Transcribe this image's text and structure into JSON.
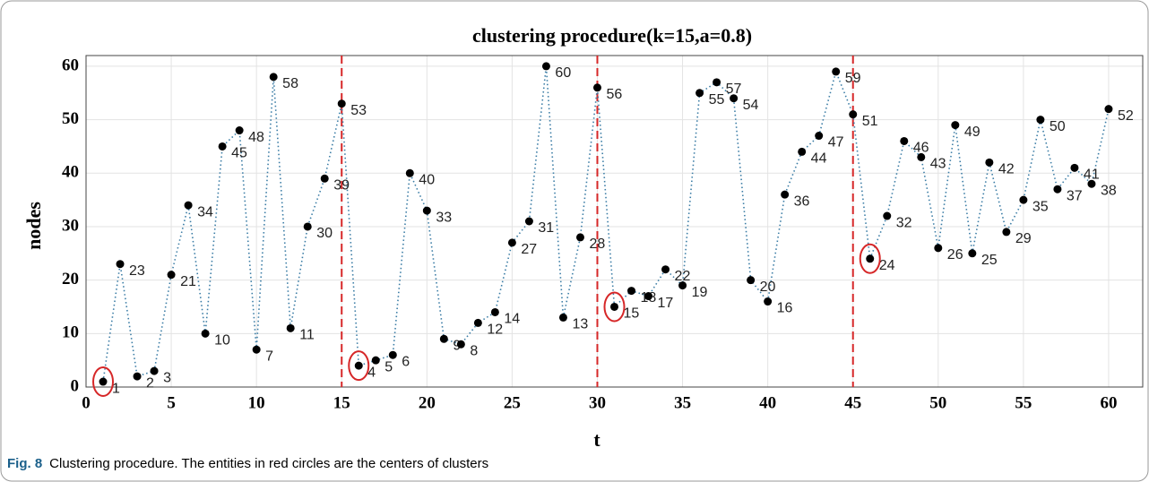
{
  "chart_data": {
    "type": "line",
    "title": "clustering procedure(k=15,a=0.8)",
    "x_label": "t",
    "y_label": "nodes",
    "x": [
      1,
      2,
      3,
      4,
      5,
      6,
      7,
      8,
      9,
      10,
      11,
      12,
      13,
      14,
      15,
      16,
      17,
      18,
      19,
      20,
      21,
      22,
      23,
      24,
      25,
      26,
      27,
      28,
      29,
      30,
      31,
      32,
      33,
      34,
      35,
      36,
      37,
      38,
      39,
      40,
      41,
      42,
      43,
      44,
      45,
      46,
      47,
      48,
      49,
      50,
      51,
      52,
      53,
      54,
      55,
      56,
      57,
      58,
      59,
      60
    ],
    "series": [
      {
        "color": "#3a7ca5",
        "marker_color": "#000000",
        "values": [
          1,
          23,
          2,
          3,
          21,
          34,
          10,
          45,
          48,
          7,
          58,
          11,
          30,
          39,
          53,
          4,
          5,
          6,
          40,
          33,
          9,
          8,
          12,
          14,
          27,
          31,
          60,
          13,
          28,
          56,
          15,
          18,
          17,
          22,
          19,
          55,
          57,
          54,
          20,
          16,
          36,
          44,
          47,
          59,
          51,
          24,
          32,
          46,
          43,
          26,
          49,
          25,
          42,
          29,
          35,
          50,
          37,
          41,
          38,
          52
        ]
      }
    ],
    "cluster_boundaries": [
      15,
      30,
      45
    ],
    "cluster_centers_x": [
      1,
      16,
      31,
      46
    ],
    "boundary_color": "#d62728",
    "xlim": [
      0,
      62
    ],
    "ylim": [
      0,
      62
    ],
    "xticks": [
      0,
      5,
      10,
      15,
      20,
      25,
      30,
      35,
      40,
      45,
      50,
      55,
      60
    ],
    "yticks": [
      0,
      10,
      20,
      30,
      40,
      50,
      60
    ],
    "grid": true
  },
  "caption": {
    "label": "Fig. 8",
    "text": "Clustering procedure. The entities in red circles are the centers of clusters"
  }
}
